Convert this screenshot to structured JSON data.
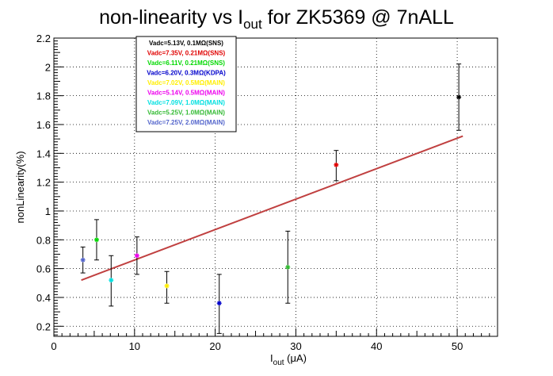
{
  "chart_data": {
    "type": "scatter",
    "title": {
      "prefix": "non-linearity vs I",
      "sub": "out",
      "suffix": " for ZK5369 @ 7nALL"
    },
    "xlabel": {
      "main": "I",
      "sub": "out",
      "rest": " (μA)"
    },
    "ylabel": "nonLinearity(%)",
    "xlim": [
      0,
      55
    ],
    "ylim": [
      0.13,
      2.2
    ],
    "x_ticks": [
      0,
      10,
      20,
      30,
      40,
      50
    ],
    "x_tick_labels": [
      "0",
      "10",
      "20",
      "30",
      "40",
      "50"
    ],
    "y_ticks": [
      0.2,
      0.4,
      0.6,
      0.8,
      1,
      1.2,
      1.4,
      1.6,
      1.8,
      2,
      2.2
    ],
    "y_tick_labels": [
      "0.2",
      "0.4",
      "0.6",
      "0.8",
      "1",
      "1.2",
      "1.4",
      "1.6",
      "1.8",
      "2",
      "2.2"
    ],
    "grid": true,
    "legend_position": "top-left",
    "series": [
      {
        "name": "Vadc=5.13V, 0.1MΩ(SNS)",
        "color": "#000000",
        "x": 50.2,
        "y": 1.79,
        "err_lo": 1.56,
        "err_hi": 2.02
      },
      {
        "name": "Vadc=7.35V, 0.21MΩ(SNS)",
        "color": "#e00000",
        "x": 35.0,
        "y": 1.32,
        "err_lo": 1.21,
        "err_hi": 1.42
      },
      {
        "name": "Vadc=6.11V, 0.21MΩ(SNS)",
        "color": "#00d800",
        "x": 5.3,
        "y": 0.8,
        "err_lo": 0.66,
        "err_hi": 0.94
      },
      {
        "name": "Vadc=6.20V, 0.3MΩ(KDPA)",
        "color": "#0000cc",
        "x": 20.5,
        "y": 0.36,
        "err_lo": 0.15,
        "err_hi": 0.56
      },
      {
        "name": "Vadc=7.02V, 0.5MΩ(MAIN)",
        "color": "#ffee00",
        "x": 14.0,
        "y": 0.48,
        "err_lo": 0.36,
        "err_hi": 0.58
      },
      {
        "name": "Vadc=5.14V, 0.5MΩ(MAIN)",
        "color": "#ee00ee",
        "x": 10.3,
        "y": 0.69,
        "err_lo": 0.56,
        "err_hi": 0.82
      },
      {
        "name": "Vadc=7.09V, 1.0MΩ(MAIN)",
        "color": "#00e0e0",
        "x": 7.1,
        "y": 0.52,
        "err_lo": 0.34,
        "err_hi": 0.69
      },
      {
        "name": "Vadc=5.25V, 1.0MΩ(MAIN)",
        "color": "#33bb33",
        "x": 29.0,
        "y": 0.61,
        "err_lo": 0.36,
        "err_hi": 0.86
      },
      {
        "name": "Vadc=7.25V, 2.0MΩ(MAIN)",
        "color": "#5566cc",
        "x": 3.6,
        "y": 0.66,
        "err_lo": 0.57,
        "err_hi": 0.75
      }
    ],
    "fit_line": {
      "color": "#c04040",
      "x": [
        3.4,
        50.7
      ],
      "y": [
        0.52,
        1.52
      ]
    }
  }
}
